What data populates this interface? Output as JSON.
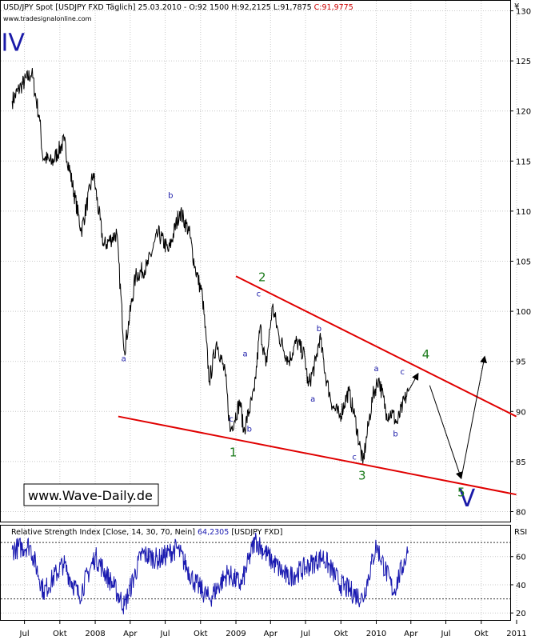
{
  "header": {
    "symbol_text": "USD/JPY Spot [USDJPY FXD  Täglich] 25.03.2010 - O:92 1500 H:92,2125 L:91,7875",
    "close_text": "C:91,9775",
    "website": "www.tradesignalonline.com"
  },
  "watermark": "www.Wave-Daily.de",
  "currency_symbol": "¥",
  "colors": {
    "price_line": "#000000",
    "channel_lines": "#e00000",
    "rsi_line": "#1a1ab0",
    "wave_labels_minor": "#1a1aa8",
    "wave_labels_major": "#1a7a1a",
    "grid": "#c8c8c8"
  },
  "chart_data": [
    {
      "type": "line",
      "title": "USD/JPY Spot [USDJPY FXD Täglich]",
      "y_axis_side": "right",
      "ylim": [
        79,
        131
      ],
      "y_ticks": [
        80,
        85,
        90,
        95,
        100,
        105,
        110,
        115,
        120,
        125,
        130
      ],
      "x_ticks": [
        "Jul",
        "Okt",
        "2008",
        "Apr",
        "Jul",
        "Okt",
        "2009",
        "Apr",
        "Jul",
        "Okt",
        "2010",
        "Apr",
        "Jul",
        "Okt",
        "2011"
      ],
      "grid": "dotted",
      "series": [
        {
          "x": [
            "2007-05-30",
            "2007-06-22",
            "2007-07-20",
            "2007-08-10",
            "2007-08-17",
            "2007-09-10",
            "2007-10-12",
            "2007-11-26",
            "2007-12-27",
            "2008-01-23",
            "2008-02-26",
            "2008-03-17",
            "2008-04-15",
            "2008-05-15",
            "2008-06-13",
            "2008-07-10",
            "2008-08-08",
            "2008-09-01",
            "2008-09-16",
            "2008-10-06",
            "2008-10-24",
            "2008-11-12",
            "2008-12-05",
            "2008-12-17",
            "2009-01-12",
            "2009-01-21",
            "2009-02-18",
            "2009-03-05",
            "2009-03-20",
            "2009-04-06",
            "2009-04-23",
            "2009-05-18",
            "2009-06-08",
            "2009-06-29",
            "2009-07-08",
            "2009-07-28",
            "2009-08-07",
            "2009-08-25",
            "2009-09-10",
            "2009-09-28",
            "2009-10-21",
            "2009-11-06",
            "2009-11-27",
            "2009-12-11",
            "2009-12-23",
            "2010-01-07",
            "2010-01-28",
            "2010-02-12",
            "2010-02-24",
            "2010-03-10",
            "2010-03-25"
          ],
          "y": [
            121.0,
            122.5,
            123.8,
            119.0,
            115.5,
            114.8,
            117.0,
            108.0,
            113.8,
            106.5,
            107.8,
            96.0,
            103.5,
            104.5,
            107.8,
            106.0,
            110.0,
            108.0,
            104.5,
            101.5,
            93.0,
            97.0,
            93.5,
            88.0,
            91.0,
            88.0,
            92.0,
            98.5,
            94.5,
            100.5,
            97.5,
            95.0,
            97.0,
            95.5,
            92.5,
            95.0,
            97.5,
            93.0,
            90.5,
            89.5,
            92.0,
            89.5,
            84.8,
            88.5,
            91.5,
            93.3,
            89.8,
            89.8,
            88.8,
            90.5,
            91.98
          ],
          "range_high": [
            124.0,
            111.8,
            101.8
          ],
          "range_low": [
            96.0,
            87.1,
            84.8
          ]
        }
      ],
      "annotations": {
        "channel_upper": {
          "from": {
            "x": "2009-01-01",
            "y": 103.5
          },
          "to": {
            "x": "2010-12-31",
            "y": 89.5
          }
        },
        "channel_lower": {
          "from": {
            "x": "2008-03-01",
            "y": 89.5
          },
          "to": {
            "x": "2010-12-31",
            "y": 81.7
          }
        },
        "projection_arrows": [
          {
            "from": {
              "x": "2010-03-25",
              "y": 92.0
            },
            "to": {
              "x": "2010-04-20",
              "y": 93.8
            }
          },
          {
            "from": {
              "x": "2010-05-20",
              "y": 92.6
            },
            "to": {
              "x": "2010-08-10",
              "y": 83.3
            }
          },
          {
            "from": {
              "x": "2010-08-10",
              "y": 83.3
            },
            "to": {
              "x": "2010-10-10",
              "y": 95.5
            }
          }
        ],
        "wave_labels_major": [
          {
            "text": "IV",
            "x": "2007-06-01",
            "y": 126.0,
            "size": "large"
          },
          {
            "text": "V",
            "x": "2010-08-25",
            "y": 80.5,
            "size": "large"
          },
          {
            "text": "1",
            "x": "2008-12-25",
            "y": 85.5
          },
          {
            "text": "2",
            "x": "2009-03-10",
            "y": 103.0
          },
          {
            "text": "3",
            "x": "2009-11-25",
            "y": 83.2
          },
          {
            "text": "4",
            "x": "2010-05-10",
            "y": 95.3
          },
          {
            "text": "5",
            "x": "2010-08-10",
            "y": 81.5
          }
        ],
        "wave_labels_minor": [
          {
            "text": "a",
            "x": "2008-03-15",
            "y": 95.0
          },
          {
            "text": "b",
            "x": "2008-07-15",
            "y": 111.3
          },
          {
            "text": "a",
            "x": "2009-01-25",
            "y": 95.5
          },
          {
            "text": "b",
            "x": "2009-02-05",
            "y": 88.0
          },
          {
            "text": "c",
            "x": "2008-12-20",
            "y": 89.0
          },
          {
            "text": "c",
            "x": "2009-03-01",
            "y": 101.5
          },
          {
            "text": "b",
            "x": "2009-08-05",
            "y": 98.0
          },
          {
            "text": "a",
            "x": "2009-07-20",
            "y": 91.0
          },
          {
            "text": "c",
            "x": "2009-11-05",
            "y": 85.2
          },
          {
            "text": "a",
            "x": "2010-01-01",
            "y": 94.0
          },
          {
            "text": "b",
            "x": "2010-02-20",
            "y": 87.5
          },
          {
            "text": "c",
            "x": "2010-03-10",
            "y": 93.7
          }
        ]
      }
    },
    {
      "type": "line",
      "title": "Relative Strength Index [Close, 14, 30, 70, Nein]",
      "value_text": "64,2305",
      "symbol_text": "[USDJPY FXD]",
      "axis_label": "RSI",
      "ylim": [
        15,
        82
      ],
      "y_ticks": [
        20,
        40,
        60
      ],
      "levels": [
        30,
        70
      ],
      "series": [
        {
          "x": [
            "2007-05-30",
            "2007-07-15",
            "2007-08-20",
            "2007-10-10",
            "2007-11-20",
            "2008-01-01",
            "2008-02-20",
            "2008-03-17",
            "2008-05-01",
            "2008-06-15",
            "2008-08-01",
            "2008-09-15",
            "2008-10-24",
            "2008-12-10",
            "2009-01-15",
            "2009-02-20",
            "2009-04-01",
            "2009-05-15",
            "2009-07-01",
            "2009-08-15",
            "2009-10-01",
            "2009-11-27",
            "2010-01-01",
            "2010-02-15",
            "2010-03-25"
          ],
          "y": [
            65,
            68,
            35,
            55,
            32,
            60,
            38,
            25,
            62,
            58,
            66,
            42,
            30,
            48,
            40,
            72,
            58,
            45,
            52,
            60,
            40,
            30,
            68,
            35,
            64.2
          ]
        }
      ]
    }
  ]
}
